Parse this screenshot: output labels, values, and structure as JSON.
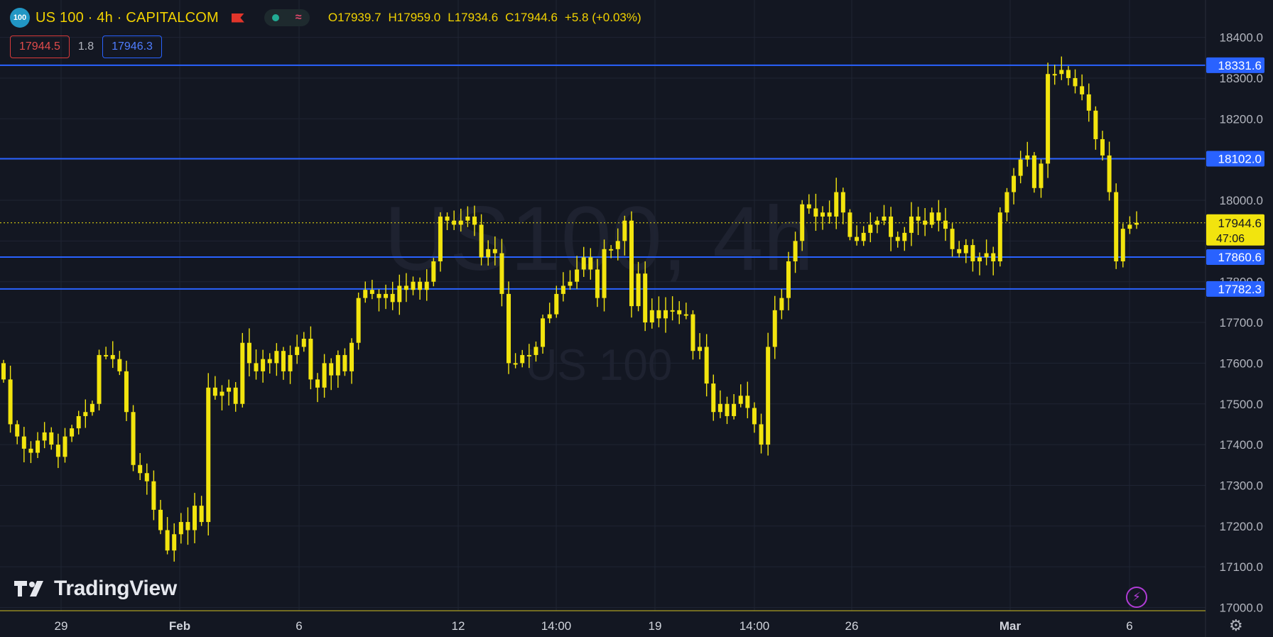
{
  "header": {
    "symbol_badge": "100",
    "title": "US 100 · 4h · CAPITALCOM",
    "ohlc": {
      "open": "O17939.7",
      "high": "H17959.0",
      "low": "L17934.6",
      "close": "C17944.6",
      "change": "+5.8 (+0.03%)"
    }
  },
  "quote": {
    "bid": "17944.5",
    "spread": "1.8",
    "ask": "17946.3"
  },
  "watermark": {
    "main": "US100, 4h",
    "sub": "US 100"
  },
  "branding": {
    "logo_text": "TradingView"
  },
  "colors": {
    "background": "#131722",
    "candle": "#f2e40e",
    "level_line": "#2962ff",
    "price_tag": "#f2e40e"
  },
  "chart_data": {
    "type": "candlestick",
    "title": "US 100 · 4h · CAPITALCOM",
    "y_axis": {
      "range": [
        17000,
        18430
      ],
      "ticks": [
        "18400.0",
        "18300.0",
        "18200.0",
        "18100.0",
        "18000.0",
        "17900.0",
        "17800.0",
        "17700.0",
        "17600.0",
        "17500.0",
        "17400.0",
        "17300.0",
        "17200.0",
        "17100.0",
        "17000.0"
      ]
    },
    "x_axis": {
      "ticks": [
        "29",
        "Feb",
        "6",
        "12",
        "14:00",
        "19",
        "14:00",
        "26",
        "Mar",
        "6"
      ]
    },
    "levels": [
      18331.6,
      18102.0,
      17860.6,
      17782.3
    ],
    "current_price": {
      "value": 17944.6,
      "label": "17944.6",
      "countdown": "47:06"
    },
    "candles_close": [
      17560,
      17450,
      17420,
      17390,
      17380,
      17410,
      17430,
      17400,
      17370,
      17420,
      17440,
      17470,
      17480,
      17500,
      17620,
      17620,
      17610,
      17580,
      17480,
      17350,
      17330,
      17310,
      17240,
      17190,
      17140,
      17180,
      17210,
      17190,
      17250,
      17210,
      17540,
      17520,
      17530,
      17540,
      17500,
      17650,
      17600,
      17580,
      17610,
      17600,
      17630,
      17580,
      17620,
      17640,
      17660,
      17560,
      17540,
      17600,
      17570,
      17620,
      17580,
      17650,
      17760,
      17780,
      17770,
      17760,
      17770,
      17750,
      17790,
      17780,
      17800,
      17780,
      17800,
      17850,
      17960,
      17950,
      17940,
      17950,
      17960,
      17940,
      17860,
      17880,
      17870,
      17770,
      17600,
      17600,
      17620,
      17620,
      17640,
      17710,
      17720,
      17770,
      17790,
      17800,
      17830,
      17860,
      17830,
      17760,
      17880,
      17880,
      17900,
      17950,
      17740,
      17820,
      17700,
      17730,
      17710,
      17730,
      17730,
      17720,
      17720,
      17630,
      17640,
      17550,
      17480,
      17500,
      17470,
      17500,
      17520,
      17490,
      17450,
      17400,
      17640,
      17730,
      17760,
      17850,
      17900,
      17990,
      17980,
      17960,
      17970,
      17960,
      18020,
      17970,
      17910,
      17900,
      17920,
      17940,
      17950,
      17960,
      17910,
      17900,
      17920,
      17960,
      17950,
      17940,
      17970,
      17950,
      17930,
      17880,
      17870,
      17890,
      17850,
      17860,
      17870,
      17850,
      17970,
      18020,
      18060,
      18100,
      18110,
      18030,
      18090,
      18310,
      18310,
      18320,
      18300,
      18280,
      18260,
      18220,
      18150,
      18110,
      18020,
      17850,
      17930,
      17940,
      17944.6
    ]
  }
}
